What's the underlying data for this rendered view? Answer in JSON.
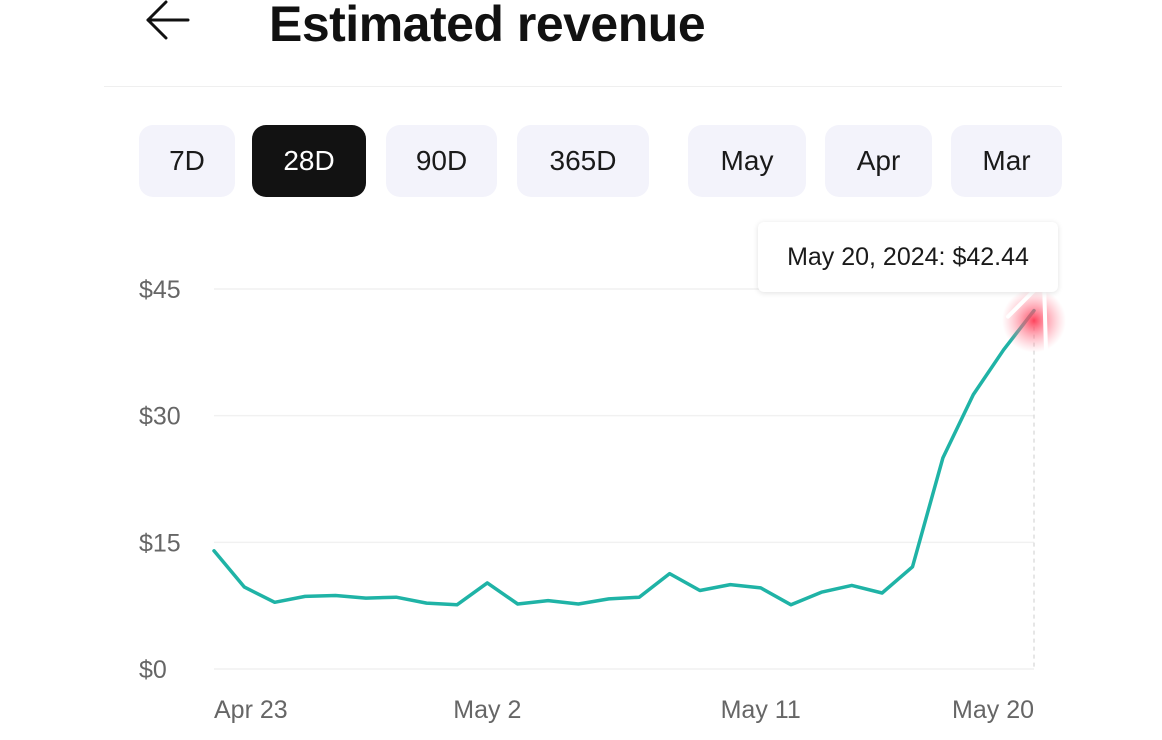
{
  "header": {
    "title": "Estimated revenue",
    "back_icon": "arrow-left-icon"
  },
  "tabs": [
    {
      "label": "7D",
      "selected": false
    },
    {
      "label": "28D",
      "selected": true
    },
    {
      "label": "90D",
      "selected": false
    },
    {
      "label": "365D",
      "selected": false
    },
    {
      "label": "May",
      "selected": false
    },
    {
      "label": "Apr",
      "selected": false
    },
    {
      "label": "Mar",
      "selected": false
    }
  ],
  "tooltip": {
    "text": "May 20, 2024: $42.44"
  },
  "colors": {
    "line": "#1fb3a6",
    "selected_tab_bg": "#121212",
    "tab_bg": "#f3f3fb",
    "grid": "#f1f1f1",
    "touch_highlight": "#ff3b55"
  },
  "chart_data": {
    "type": "line",
    "title": "Estimated revenue",
    "xlabel": "",
    "ylabel": "",
    "ylim": [
      0,
      45
    ],
    "yticks": [
      0,
      15,
      30,
      45
    ],
    "ytick_labels": [
      "$0",
      "$15",
      "$30",
      "$45"
    ],
    "xtick_labels": [
      "Apr 23",
      "May 2",
      "May 11",
      "May 20"
    ],
    "xtick_index": [
      0,
      9,
      18,
      27
    ],
    "grid": true,
    "series": [
      {
        "name": "Estimated revenue",
        "x": [
          "Apr 23",
          "Apr 24",
          "Apr 25",
          "Apr 26",
          "Apr 27",
          "Apr 28",
          "Apr 29",
          "Apr 30",
          "May 1",
          "May 2",
          "May 3",
          "May 4",
          "May 5",
          "May 6",
          "May 7",
          "May 8",
          "May 9",
          "May 10",
          "May 11",
          "May 12",
          "May 13",
          "May 14",
          "May 15",
          "May 16",
          "May 17",
          "May 18",
          "May 19",
          "May 20"
        ],
        "values": [
          14.0,
          9.7,
          7.9,
          8.6,
          8.7,
          8.4,
          8.5,
          7.8,
          7.6,
          10.2,
          7.7,
          8.1,
          7.7,
          8.3,
          8.5,
          11.3,
          9.3,
          10.0,
          9.6,
          7.6,
          9.1,
          9.9,
          9.0,
          12.1,
          25.0,
          32.5,
          37.8,
          42.44
        ]
      }
    ],
    "highlight": {
      "x": "May 20",
      "value": 42.44
    }
  }
}
